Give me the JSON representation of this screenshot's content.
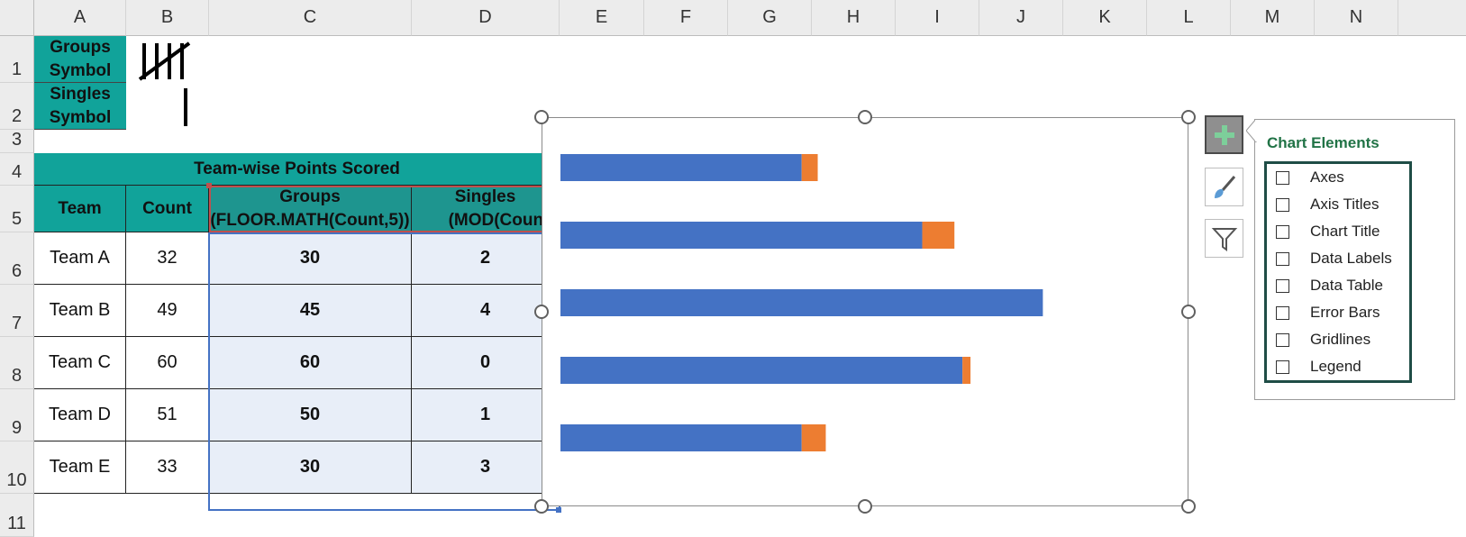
{
  "columns": [
    "A",
    "B",
    "C",
    "D",
    "E",
    "F",
    "G",
    "H",
    "I",
    "J",
    "K",
    "L",
    "M",
    "N"
  ],
  "rows": [
    "1",
    "2",
    "3",
    "4",
    "5",
    "6",
    "7",
    "8",
    "9",
    "10",
    "11"
  ],
  "legend_cells": {
    "groups_symbol": [
      "Groups",
      "Symbol"
    ],
    "singles_symbol": [
      "Singles",
      "Symbol"
    ]
  },
  "table": {
    "title": "Team-wise Points Scored",
    "headers": {
      "team": "Team",
      "count": "Count",
      "groups_line1": "Groups",
      "groups_line2": "(FLOOR.MATH(Count,5))",
      "singles_line1": "Singles",
      "singles_line2": "(MOD(Count"
    },
    "rows": [
      {
        "team": "Team A",
        "count": "32",
        "groups": "30",
        "singles": "2"
      },
      {
        "team": "Team B",
        "count": "49",
        "groups": "45",
        "singles": "4"
      },
      {
        "team": "Team C",
        "count": "60",
        "groups": "60",
        "singles": "0"
      },
      {
        "team": "Team D",
        "count": "51",
        "groups": "50",
        "singles": "1"
      },
      {
        "team": "Team E",
        "count": "33",
        "groups": "30",
        "singles": "3"
      }
    ]
  },
  "chart_data": {
    "type": "bar",
    "orientation": "horizontal",
    "stacked": true,
    "categories": [
      "Team A",
      "Team B",
      "Team C",
      "Team D",
      "Team E"
    ],
    "series": [
      {
        "values": [
          30,
          45,
          60,
          50,
          30
        ],
        "color": "#4472c4"
      },
      {
        "values": [
          2,
          4,
          0,
          1,
          3
        ],
        "color": "#ed7d31"
      }
    ],
    "xlim": [
      0,
      65
    ],
    "grid": false,
    "legend": false
  },
  "chart_buttons": {
    "add_elements_icon": "plus-icon",
    "style_icon": "paintbrush-icon",
    "filter_icon": "funnel-icon"
  },
  "chart_elements_panel": {
    "title": "Chart Elements",
    "items": [
      {
        "label": "Axes",
        "checked": false
      },
      {
        "label": "Axis Titles",
        "checked": false
      },
      {
        "label": "Chart Title",
        "checked": false
      },
      {
        "label": "Data Labels",
        "checked": false
      },
      {
        "label": "Data Table",
        "checked": false
      },
      {
        "label": "Error Bars",
        "checked": false
      },
      {
        "label": "Gridlines",
        "checked": false
      },
      {
        "label": "Legend",
        "checked": false
      }
    ]
  },
  "colors": {
    "header_teal": "#11a39a",
    "panel_title_green": "#217346",
    "selection_fill": "#e8eef8"
  }
}
